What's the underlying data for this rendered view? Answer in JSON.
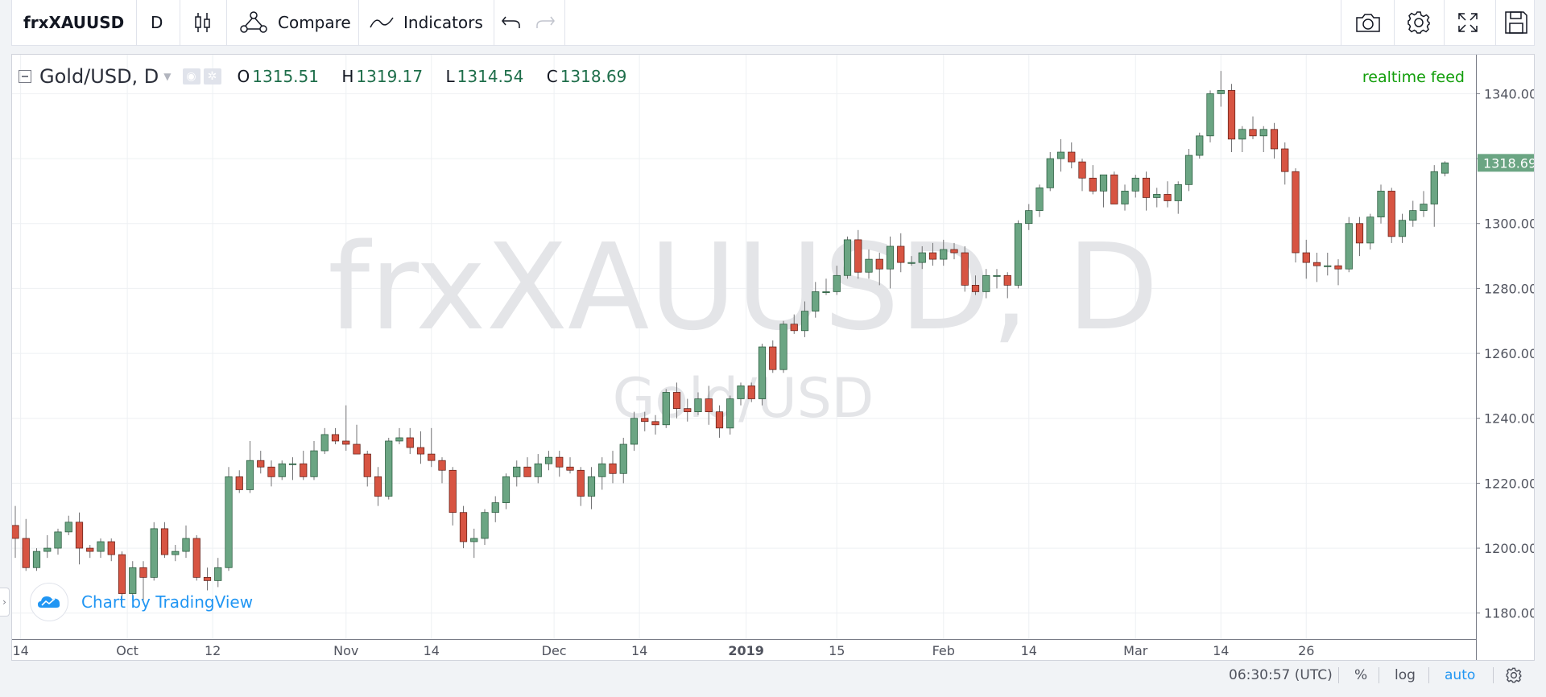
{
  "toolbar": {
    "symbol": "frxXAUUSD",
    "interval": "D",
    "compare_label": "Compare",
    "indicators_label": "Indicators",
    "icons": [
      "candles-icon",
      "compare-icon",
      "indicators-icon",
      "undo-icon",
      "redo-icon",
      "camera-icon",
      "gear-icon",
      "fullscreen-icon",
      "save-icon"
    ]
  },
  "legend": {
    "title": "Gold/USD, D",
    "open_key": "O",
    "open": "1315.51",
    "high_key": "H",
    "high": "1319.17",
    "low_key": "L",
    "low": "1314.54",
    "close_key": "C",
    "close": "1318.69"
  },
  "realtime_label": "realtime feed",
  "watermark": {
    "main": "frxXAUUSD, D",
    "sub": "Gold/USD"
  },
  "logo_text": "Chart by TradingView",
  "bottom": {
    "time": "06:30:57 (UTC)",
    "percent": "%",
    "log": "log",
    "auto": "auto"
  },
  "colors": {
    "up": "#6ba583",
    "down": "#d75442",
    "wick": "#737375",
    "accent": "#2196f3",
    "realtime": "#129e0b",
    "grid": "#eef0f3"
  },
  "chart_data": {
    "type": "candlestick",
    "title": "Gold/USD, D",
    "price_axis": {
      "ylim": [
        1172,
        1352
      ],
      "ticks": [
        "1180.00",
        "1200.00",
        "1220.00",
        "1240.00",
        "1260.00",
        "1280.00",
        "1300.00",
        "1320.00",
        "1340.00"
      ],
      "last_price": "1318.69"
    },
    "time_axis": {
      "labels": [
        {
          "text": "14",
          "index": 0.5,
          "bold": false
        },
        {
          "text": "Oct",
          "index": 10.5,
          "bold": false
        },
        {
          "text": "12",
          "index": 18.5,
          "bold": false
        },
        {
          "text": "Nov",
          "index": 31,
          "bold": false
        },
        {
          "text": "14",
          "index": 39,
          "bold": false
        },
        {
          "text": "Dec",
          "index": 50.5,
          "bold": false
        },
        {
          "text": "14",
          "index": 58.5,
          "bold": false
        },
        {
          "text": "2019",
          "index": 68.5,
          "bold": true
        },
        {
          "text": "15",
          "index": 77,
          "bold": false
        },
        {
          "text": "Feb",
          "index": 87,
          "bold": false
        },
        {
          "text": "14",
          "index": 95,
          "bold": false
        },
        {
          "text": "Mar",
          "index": 105,
          "bold": false
        },
        {
          "text": "14",
          "index": 113,
          "bold": false
        },
        {
          "text": "26",
          "index": 121,
          "bold": false
        }
      ]
    },
    "candles": [
      [
        1207,
        1213,
        1197,
        1203
      ],
      [
        1203,
        1209,
        1193,
        1194
      ],
      [
        1194,
        1200,
        1193,
        1199
      ],
      [
        1199,
        1204,
        1197,
        1200
      ],
      [
        1200,
        1206,
        1198,
        1205
      ],
      [
        1205,
        1210,
        1204,
        1208
      ],
      [
        1208,
        1211,
        1195,
        1200
      ],
      [
        1200,
        1201,
        1197,
        1199
      ],
      [
        1199,
        1203,
        1197,
        1202
      ],
      [
        1202,
        1203,
        1196,
        1198
      ],
      [
        1198,
        1199,
        1183,
        1186
      ],
      [
        1186,
        1196,
        1184,
        1194
      ],
      [
        1194,
        1196,
        1184,
        1191
      ],
      [
        1191,
        1208,
        1190,
        1206
      ],
      [
        1206,
        1208,
        1197,
        1198
      ],
      [
        1198,
        1201,
        1196,
        1199
      ],
      [
        1199,
        1207,
        1197,
        1203
      ],
      [
        1203,
        1204,
        1190,
        1191
      ],
      [
        1191,
        1194,
        1187,
        1190
      ],
      [
        1190,
        1197,
        1188,
        1194
      ],
      [
        1194,
        1225,
        1193,
        1222
      ],
      [
        1222,
        1224,
        1217,
        1218
      ],
      [
        1218,
        1233,
        1217,
        1227
      ],
      [
        1227,
        1230,
        1223,
        1225
      ],
      [
        1225,
        1227,
        1219,
        1222
      ],
      [
        1222,
        1227,
        1221,
        1226
      ],
      [
        1226,
        1228,
        1221,
        1226
      ],
      [
        1226,
        1230,
        1221,
        1222
      ],
      [
        1222,
        1233,
        1221,
        1230
      ],
      [
        1230,
        1237,
        1229,
        1235
      ],
      [
        1235,
        1237,
        1232,
        1233
      ],
      [
        1233,
        1244,
        1230,
        1232
      ],
      [
        1232,
        1238,
        1230,
        1229
      ],
      [
        1229,
        1230,
        1219,
        1222
      ],
      [
        1222,
        1225,
        1213,
        1216
      ],
      [
        1216,
        1234,
        1215,
        1233
      ],
      [
        1233,
        1237,
        1232,
        1234
      ],
      [
        1234,
        1237,
        1229,
        1231
      ],
      [
        1231,
        1236,
        1226,
        1229
      ],
      [
        1229,
        1237,
        1225,
        1227
      ],
      [
        1227,
        1228,
        1220,
        1224
      ],
      [
        1224,
        1225,
        1207,
        1211
      ],
      [
        1211,
        1213,
        1200,
        1202
      ],
      [
        1202,
        1206,
        1197,
        1203
      ],
      [
        1203,
        1212,
        1201,
        1211
      ],
      [
        1211,
        1216,
        1208,
        1214
      ],
      [
        1214,
        1223,
        1212,
        1222
      ],
      [
        1222,
        1227,
        1219,
        1225
      ],
      [
        1225,
        1228,
        1222,
        1222
      ],
      [
        1222,
        1229,
        1220,
        1226
      ],
      [
        1226,
        1230,
        1224,
        1228
      ],
      [
        1228,
        1230,
        1222,
        1225
      ],
      [
        1225,
        1228,
        1223,
        1224
      ],
      [
        1224,
        1225,
        1213,
        1216
      ],
      [
        1216,
        1225,
        1212,
        1222
      ],
      [
        1222,
        1228,
        1218,
        1226
      ],
      [
        1226,
        1230,
        1220,
        1223
      ],
      [
        1223,
        1234,
        1220,
        1232
      ],
      [
        1232,
        1242,
        1230,
        1240
      ],
      [
        1240,
        1242,
        1236,
        1239
      ],
      [
        1239,
        1241,
        1235,
        1238
      ],
      [
        1238,
        1249,
        1237,
        1248
      ],
      [
        1248,
        1251,
        1240,
        1243
      ],
      [
        1243,
        1246,
        1239,
        1242
      ],
      [
        1242,
        1248,
        1241,
        1246
      ],
      [
        1246,
        1250,
        1238,
        1242
      ],
      [
        1242,
        1244,
        1234,
        1237
      ],
      [
        1237,
        1247,
        1235,
        1246
      ],
      [
        1246,
        1251,
        1244,
        1250
      ],
      [
        1250,
        1251,
        1245,
        1246
      ],
      [
        1246,
        1263,
        1244,
        1262
      ],
      [
        1262,
        1264,
        1254,
        1255
      ],
      [
        1255,
        1270,
        1254,
        1269
      ],
      [
        1269,
        1272,
        1266,
        1267
      ],
      [
        1267,
        1276,
        1265,
        1273
      ],
      [
        1273,
        1282,
        1271,
        1279
      ],
      [
        1279,
        1283,
        1278,
        1279
      ],
      [
        1279,
        1287,
        1278,
        1284
      ],
      [
        1284,
        1296,
        1283,
        1295
      ],
      [
        1295,
        1298,
        1283,
        1285
      ],
      [
        1285,
        1292,
        1283,
        1289
      ],
      [
        1289,
        1291,
        1281,
        1286
      ],
      [
        1286,
        1296,
        1280,
        1293
      ],
      [
        1293,
        1297,
        1285,
        1288
      ],
      [
        1288,
        1290,
        1287,
        1288
      ],
      [
        1288,
        1293,
        1286,
        1291
      ],
      [
        1291,
        1294,
        1287,
        1289
      ],
      [
        1289,
        1295,
        1287,
        1292
      ],
      [
        1292,
        1294,
        1289,
        1291
      ],
      [
        1291,
        1293,
        1279,
        1281
      ],
      [
        1281,
        1284,
        1278,
        1279
      ],
      [
        1279,
        1286,
        1277,
        1284
      ],
      [
        1284,
        1286,
        1280,
        1284
      ],
      [
        1284,
        1285,
        1277,
        1281
      ],
      [
        1281,
        1301,
        1280,
        1300
      ],
      [
        1300,
        1306,
        1298,
        1304
      ],
      [
        1304,
        1312,
        1302,
        1311
      ],
      [
        1311,
        1322,
        1310,
        1320
      ],
      [
        1320,
        1326,
        1316,
        1322
      ],
      [
        1322,
        1325,
        1317,
        1319
      ],
      [
        1319,
        1320,
        1310,
        1314
      ],
      [
        1314,
        1318,
        1309,
        1310
      ],
      [
        1310,
        1315,
        1305,
        1315
      ],
      [
        1315,
        1316,
        1306,
        1306
      ],
      [
        1306,
        1312,
        1304,
        1310
      ],
      [
        1310,
        1315,
        1308,
        1314
      ],
      [
        1314,
        1316,
        1304,
        1308
      ],
      [
        1308,
        1311,
        1305,
        1309
      ],
      [
        1309,
        1313,
        1305,
        1307
      ],
      [
        1307,
        1313,
        1303,
        1312
      ],
      [
        1312,
        1323,
        1310,
        1321
      ],
      [
        1321,
        1328,
        1320,
        1327
      ],
      [
        1327,
        1341,
        1325,
        1340
      ],
      [
        1340,
        1347,
        1336,
        1341
      ],
      [
        1341,
        1343,
        1322,
        1326
      ],
      [
        1326,
        1330,
        1322,
        1329
      ],
      [
        1329,
        1333,
        1326,
        1327
      ],
      [
        1327,
        1330,
        1322,
        1329
      ],
      [
        1329,
        1331,
        1320,
        1323
      ],
      [
        1323,
        1325,
        1312,
        1316
      ],
      [
        1316,
        1317,
        1288,
        1291
      ],
      [
        1291,
        1295,
        1283,
        1288
      ],
      [
        1288,
        1291,
        1282,
        1287
      ],
      [
        1287,
        1291,
        1284,
        1287
      ],
      [
        1287,
        1289,
        1281,
        1286
      ],
      [
        1286,
        1302,
        1285,
        1300
      ],
      [
        1300,
        1302,
        1290,
        1294
      ],
      [
        1294,
        1303,
        1292,
        1302
      ],
      [
        1302,
        1312,
        1300,
        1310
      ],
      [
        1310,
        1311,
        1294,
        1296
      ],
      [
        1296,
        1303,
        1294,
        1301
      ],
      [
        1301,
        1307,
        1299,
        1304
      ],
      [
        1304,
        1310,
        1302,
        1306
      ],
      [
        1306,
        1318,
        1299,
        1316
      ],
      [
        1315.51,
        1319.17,
        1314.54,
        1318.69
      ]
    ]
  }
}
